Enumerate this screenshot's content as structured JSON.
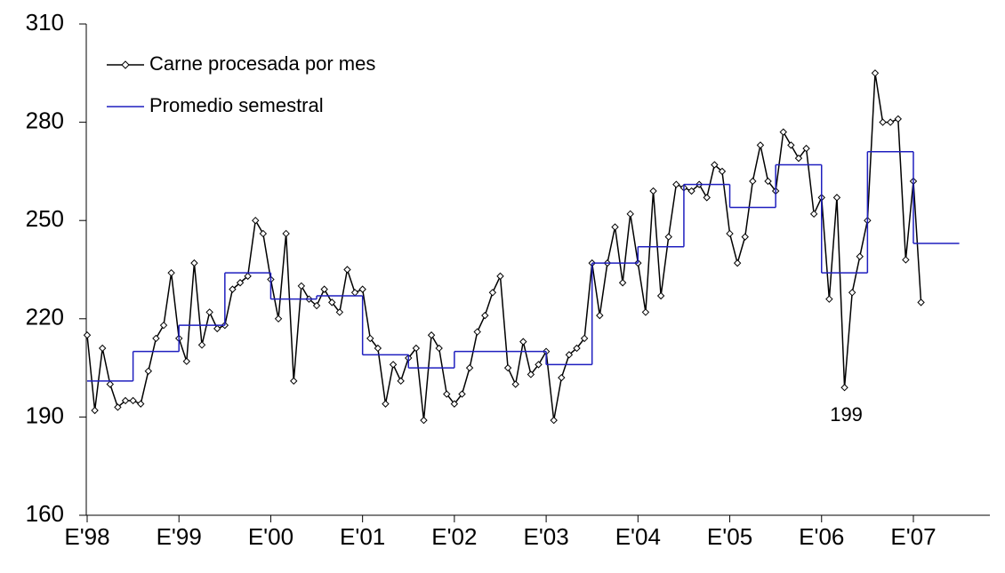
{
  "chart_data": {
    "type": "line",
    "xlim": [
      0,
      118
    ],
    "xticks": [
      {
        "value": 0,
        "label": "E'98"
      },
      {
        "value": 12,
        "label": "E'99"
      },
      {
        "value": 24,
        "label": "E'00"
      },
      {
        "value": 36,
        "label": "E'01"
      },
      {
        "value": 48,
        "label": "E'02"
      },
      {
        "value": 60,
        "label": "E'03"
      },
      {
        "value": 72,
        "label": "E'04"
      },
      {
        "value": 84,
        "label": "E'05"
      },
      {
        "value": 96,
        "label": "E'06"
      },
      {
        "value": 108,
        "label": "E'07"
      }
    ],
    "ylim": [
      160,
      310
    ],
    "yticks": [
      160,
      190,
      220,
      250,
      280,
      310
    ],
    "legend": "top-left",
    "series": [
      {
        "name": "Carne procesada por mes",
        "color": "#000000",
        "marker": "diamond",
        "values": [
          215,
          192,
          211,
          200,
          193,
          195,
          195,
          194,
          204,
          214,
          218,
          234,
          214,
          207,
          237,
          212,
          222,
          217,
          218,
          229,
          231,
          233,
          250,
          246,
          232,
          220,
          246,
          201,
          230,
          226,
          224,
          229,
          225,
          222,
          235,
          228,
          229,
          214,
          211,
          194,
          206,
          201,
          208,
          211,
          189,
          215,
          211,
          197,
          194,
          197,
          205,
          216,
          221,
          228,
          233,
          205,
          200,
          213,
          203,
          206,
          210,
          189,
          202,
          209,
          211,
          214,
          237,
          221,
          237,
          248,
          231,
          252,
          237,
          222,
          259,
          227,
          245,
          261,
          260,
          259,
          261,
          257,
          267,
          265,
          246,
          237,
          245,
          262,
          273,
          262,
          259,
          277,
          273,
          269,
          272,
          252,
          257,
          226,
          257,
          199,
          228,
          239,
          250,
          295,
          280,
          280,
          281,
          238,
          262,
          225
        ]
      },
      {
        "name": "Promedio semestral",
        "color": "#1f1fbf",
        "drawstyle": "steps-post",
        "x": [
          0,
          6,
          12,
          18,
          24,
          30,
          36,
          42,
          48,
          54,
          60,
          66,
          72,
          78,
          84,
          90,
          96,
          102,
          108
        ],
        "values": [
          201,
          210,
          218,
          234,
          226,
          227,
          209,
          205,
          210,
          210,
          206,
          237,
          242,
          261,
          254,
          267,
          234,
          271,
          243
        ]
      }
    ],
    "annotations": [
      {
        "text": "199",
        "x": 99,
        "y": 199
      }
    ]
  }
}
